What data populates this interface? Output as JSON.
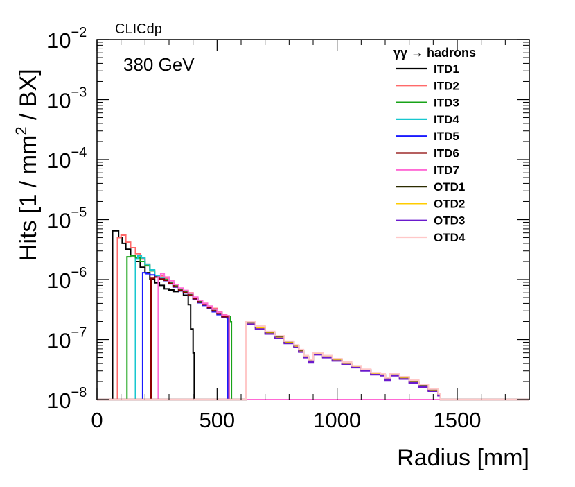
{
  "chart_data": {
    "type": "line",
    "style": "step-histogram",
    "experiment_label": "CLICdp",
    "energy_label": "380 GeV",
    "xlabel": "Radius [mm]",
    "ylabel": {
      "before": "Hits [1 / mm",
      "sup": "2",
      "after": " / BX]"
    },
    "xlim": [
      0,
      1800
    ],
    "ylim": [
      1e-08,
      0.01
    ],
    "yscale": "log",
    "x_ticks": [
      {
        "value": 0,
        "label": "0"
      },
      {
        "value": 500,
        "label": "500"
      },
      {
        "value": 1000,
        "label": "1000"
      },
      {
        "value": 1500,
        "label": "1500"
      }
    ],
    "y_ticks": [
      {
        "value": 1e-08,
        "base": "10",
        "exp": "−8"
      },
      {
        "value": 1e-07,
        "base": "10",
        "exp": "−7"
      },
      {
        "value": 1e-06,
        "base": "10",
        "exp": "−6"
      },
      {
        "value": 1e-05,
        "base": "10",
        "exp": "−5"
      },
      {
        "value": 0.0001,
        "base": "10",
        "exp": "−4"
      },
      {
        "value": 0.001,
        "base": "10",
        "exp": "−3"
      },
      {
        "value": 0.01,
        "base": "10",
        "exp": "−2"
      }
    ],
    "legend": {
      "title": "γγ → hadrons",
      "placement": "top-right"
    },
    "series": [
      {
        "name": "ITD1",
        "color": "#000000",
        "points": [
          [
            65,
            6.5e-06
          ],
          [
            80,
            6.5e-06
          ],
          [
            90,
            5e-06
          ],
          [
            105,
            4e-06
          ],
          [
            120,
            3.2e-06
          ],
          [
            140,
            2.5e-06
          ],
          [
            160,
            2e-06
          ],
          [
            180,
            1.6e-06
          ],
          [
            200,
            1.3e-06
          ],
          [
            220,
            1e-06
          ],
          [
            240,
            8.8e-07
          ],
          [
            260,
            8e-07
          ],
          [
            280,
            7e-07
          ],
          [
            300,
            6.7e-07
          ],
          [
            320,
            6.3e-07
          ],
          [
            340,
            6.5e-07
          ],
          [
            360,
            5.5e-07
          ],
          [
            380,
            3.8e-07
          ],
          [
            390,
            1.5e-07
          ],
          [
            400,
            6e-08
          ],
          [
            405,
            1e-08
          ]
        ]
      },
      {
        "name": "ITD2",
        "color": "#ff6a6a",
        "points": [
          [
            85,
            5e-06
          ],
          [
            100,
            5.5e-06
          ],
          [
            120,
            4.2e-06
          ],
          [
            140,
            3.4e-06
          ],
          [
            160,
            2.7e-06
          ],
          [
            180,
            2.2e-06
          ],
          [
            200,
            1.8e-06
          ],
          [
            220,
            1.4e-06
          ],
          [
            240,
            1.1e-06
          ],
          [
            260,
            1.15e-06
          ],
          [
            280,
            1.05e-06
          ],
          [
            300,
            9e-07
          ],
          [
            320,
            8e-07
          ],
          [
            340,
            6.8e-07
          ],
          [
            360,
            6.5e-07
          ],
          [
            380,
            6e-07
          ],
          [
            400,
            5e-07
          ],
          [
            420,
            4.4e-07
          ],
          [
            440,
            4e-07
          ],
          [
            460,
            3.6e-07
          ],
          [
            480,
            3.3e-07
          ],
          [
            500,
            2.9e-07
          ],
          [
            520,
            2.6e-07
          ],
          [
            540,
            2.5e-07
          ],
          [
            550,
            1e-08
          ]
        ]
      },
      {
        "name": "ITD3",
        "color": "#18a318",
        "points": [
          [
            125,
            2.4e-06
          ],
          [
            140,
            2.5e-06
          ],
          [
            160,
            2.3e-06
          ],
          [
            180,
            2e-06
          ],
          [
            200,
            1.7e-06
          ],
          [
            220,
            1.4e-06
          ],
          [
            240,
            1.15e-06
          ],
          [
            260,
            1.05e-06
          ],
          [
            280,
            1e-06
          ],
          [
            300,
            8.8e-07
          ],
          [
            320,
            7.8e-07
          ],
          [
            340,
            6.7e-07
          ],
          [
            360,
            6.2e-07
          ],
          [
            380,
            5.6e-07
          ],
          [
            400,
            4.9e-07
          ],
          [
            420,
            4.3e-07
          ],
          [
            440,
            3.9e-07
          ],
          [
            460,
            3.5e-07
          ],
          [
            480,
            3.1e-07
          ],
          [
            500,
            2.8e-07
          ],
          [
            520,
            2.5e-07
          ],
          [
            540,
            2.4e-07
          ],
          [
            555,
            2e-07
          ],
          [
            560,
            1e-08
          ]
        ]
      },
      {
        "name": "ITD4",
        "color": "#17c7cf",
        "points": [
          [
            160,
            2.2e-06
          ],
          [
            170,
            2.5e-06
          ],
          [
            185,
            2.3e-06
          ],
          [
            200,
            1.8e-06
          ],
          [
            220,
            1.45e-06
          ],
          [
            240,
            1.15e-06
          ],
          [
            260,
            1.05e-06
          ],
          [
            280,
            9.8e-07
          ],
          [
            300,
            8.6e-07
          ],
          [
            320,
            7.6e-07
          ],
          [
            340,
            6.6e-07
          ],
          [
            360,
            6.1e-07
          ],
          [
            380,
            5.5e-07
          ],
          [
            400,
            4.8e-07
          ],
          [
            420,
            4.2e-07
          ],
          [
            440,
            3.8e-07
          ],
          [
            460,
            3.4e-07
          ],
          [
            480,
            3e-07
          ],
          [
            500,
            2.7e-07
          ],
          [
            520,
            2.4e-07
          ],
          [
            540,
            2.35e-07
          ],
          [
            550,
            1e-08
          ]
        ]
      },
      {
        "name": "ITD5",
        "color": "#1a1aff",
        "points": [
          [
            190,
            1.3e-06
          ],
          [
            205,
            1.25e-06
          ],
          [
            220,
            1.2e-06
          ],
          [
            240,
            1.1e-06
          ],
          [
            260,
            1.02e-06
          ],
          [
            280,
            9.6e-07
          ],
          [
            300,
            8.5e-07
          ],
          [
            320,
            7.5e-07
          ],
          [
            340,
            6.5e-07
          ],
          [
            360,
            6e-07
          ],
          [
            380,
            5.4e-07
          ],
          [
            400,
            4.7e-07
          ],
          [
            420,
            4.1e-07
          ],
          [
            440,
            3.7e-07
          ],
          [
            460,
            3.3e-07
          ],
          [
            480,
            2.9e-07
          ],
          [
            500,
            2.6e-07
          ],
          [
            520,
            2.35e-07
          ],
          [
            540,
            2.3e-07
          ],
          [
            545,
            1e-08
          ]
        ]
      },
      {
        "name": "ITD6",
        "color": "#8b0000",
        "points": [
          [
            225,
            1.05e-06
          ],
          [
            240,
            1.1e-06
          ],
          [
            260,
            1.02e-06
          ],
          [
            280,
            9.7e-07
          ],
          [
            300,
            8.6e-07
          ],
          [
            320,
            7.6e-07
          ],
          [
            340,
            6.6e-07
          ],
          [
            360,
            6.1e-07
          ],
          [
            380,
            5.5e-07
          ],
          [
            400,
            4.8e-07
          ],
          [
            420,
            4.2e-07
          ],
          [
            440,
            3.8e-07
          ],
          [
            460,
            3.4e-07
          ],
          [
            480,
            3e-07
          ],
          [
            500,
            2.7e-07
          ],
          [
            520,
            2.4e-07
          ],
          [
            540,
            2.4e-07
          ],
          [
            550,
            1e-08
          ]
        ]
      },
      {
        "name": "ITD7",
        "color": "#ff6ad5",
        "points": [
          [
            255,
            1.1e-06
          ],
          [
            265,
            1.25e-06
          ],
          [
            280,
            1.1e-06
          ],
          [
            300,
            9.5e-07
          ],
          [
            320,
            8.3e-07
          ],
          [
            340,
            7.2e-07
          ],
          [
            360,
            6.6e-07
          ],
          [
            380,
            5.9e-07
          ],
          [
            400,
            5.1e-07
          ],
          [
            420,
            4.5e-07
          ],
          [
            440,
            4e-07
          ],
          [
            460,
            3.6e-07
          ],
          [
            480,
            3.2e-07
          ],
          [
            500,
            2.85e-07
          ],
          [
            520,
            2.55e-07
          ],
          [
            540,
            2.5e-07
          ],
          [
            550,
            1e-08
          ]
        ]
      },
      {
        "name": "OTD1",
        "color": "#2b2b00",
        "points": [
          [
            620,
            1.9e-07
          ],
          [
            660,
            1.6e-07
          ],
          [
            700,
            1.3e-07
          ],
          [
            740,
            1.1e-07
          ],
          [
            780,
            9e-08
          ],
          [
            820,
            7.8e-08
          ],
          [
            840,
            6.5e-08
          ],
          [
            860,
            5.2e-08
          ],
          [
            880,
            4.4e-08
          ],
          [
            900,
            5.8e-08
          ],
          [
            940,
            5.2e-08
          ],
          [
            980,
            4.6e-08
          ],
          [
            1020,
            4e-08
          ],
          [
            1060,
            3.5e-08
          ],
          [
            1100,
            3.1e-08
          ],
          [
            1140,
            2.7e-08
          ],
          [
            1180,
            2.6e-08
          ],
          [
            1200,
            2.2e-08
          ],
          [
            1220,
            2.6e-08
          ],
          [
            1260,
            2.3e-08
          ],
          [
            1300,
            2e-08
          ],
          [
            1340,
            1.7e-08
          ],
          [
            1380,
            1.45e-08
          ],
          [
            1420,
            1.2e-08
          ],
          [
            1430,
            1e-08
          ]
        ]
      },
      {
        "name": "OTD2",
        "color": "#ffcc00",
        "points": [
          [
            620,
            1.85e-07
          ],
          [
            660,
            1.55e-07
          ],
          [
            700,
            1.27e-07
          ],
          [
            740,
            1.07e-07
          ],
          [
            780,
            8.8e-08
          ],
          [
            820,
            7.6e-08
          ],
          [
            840,
            6.3e-08
          ],
          [
            860,
            5.1e-08
          ],
          [
            880,
            4.3e-08
          ],
          [
            900,
            5.7e-08
          ],
          [
            940,
            5.1e-08
          ],
          [
            980,
            4.5e-08
          ],
          [
            1020,
            3.95e-08
          ],
          [
            1060,
            3.45e-08
          ],
          [
            1100,
            3.05e-08
          ],
          [
            1140,
            2.65e-08
          ],
          [
            1180,
            2.55e-08
          ],
          [
            1200,
            2.15e-08
          ],
          [
            1220,
            2.55e-08
          ],
          [
            1260,
            2.25e-08
          ],
          [
            1300,
            1.95e-08
          ],
          [
            1340,
            1.65e-08
          ],
          [
            1380,
            1.4e-08
          ],
          [
            1420,
            1.18e-08
          ],
          [
            1430,
            1e-08
          ]
        ]
      },
      {
        "name": "OTD3",
        "color": "#6a1acd",
        "points": [
          [
            620,
            1.8e-07
          ],
          [
            660,
            1.5e-07
          ],
          [
            700,
            1.24e-07
          ],
          [
            740,
            1.05e-07
          ],
          [
            780,
            8.6e-08
          ],
          [
            820,
            7.4e-08
          ],
          [
            840,
            6.2e-08
          ],
          [
            860,
            5e-08
          ],
          [
            880,
            4.2e-08
          ],
          [
            900,
            5.6e-08
          ],
          [
            940,
            5e-08
          ],
          [
            980,
            4.4e-08
          ],
          [
            1020,
            3.9e-08
          ],
          [
            1060,
            3.4e-08
          ],
          [
            1100,
            3e-08
          ],
          [
            1140,
            2.6e-08
          ],
          [
            1180,
            2.5e-08
          ],
          [
            1200,
            2.1e-08
          ],
          [
            1220,
            2.5e-08
          ],
          [
            1260,
            2.2e-08
          ],
          [
            1300,
            1.9e-08
          ],
          [
            1340,
            1.62e-08
          ],
          [
            1380,
            1.38e-08
          ],
          [
            1420,
            1.16e-08
          ],
          [
            1430,
            1e-08
          ]
        ]
      },
      {
        "name": "OTD4",
        "color": "#ffc8c8",
        "points": [
          [
            620,
            2e-07
          ],
          [
            660,
            1.68e-07
          ],
          [
            700,
            1.36e-07
          ],
          [
            740,
            1.15e-07
          ],
          [
            780,
            9.4e-08
          ],
          [
            820,
            8.1e-08
          ],
          [
            840,
            6.8e-08
          ],
          [
            860,
            5.4e-08
          ],
          [
            880,
            4.6e-08
          ],
          [
            900,
            6e-08
          ],
          [
            940,
            5.4e-08
          ],
          [
            980,
            4.8e-08
          ],
          [
            1020,
            4.2e-08
          ],
          [
            1060,
            3.65e-08
          ],
          [
            1100,
            3.2e-08
          ],
          [
            1140,
            2.8e-08
          ],
          [
            1180,
            2.7e-08
          ],
          [
            1200,
            2.3e-08
          ],
          [
            1220,
            2.7e-08
          ],
          [
            1260,
            2.4e-08
          ],
          [
            1300,
            2.1e-08
          ],
          [
            1340,
            1.78e-08
          ],
          [
            1380,
            1.5e-08
          ],
          [
            1420,
            1.25e-08
          ],
          [
            1430,
            1e-08
          ]
        ]
      }
    ]
  }
}
